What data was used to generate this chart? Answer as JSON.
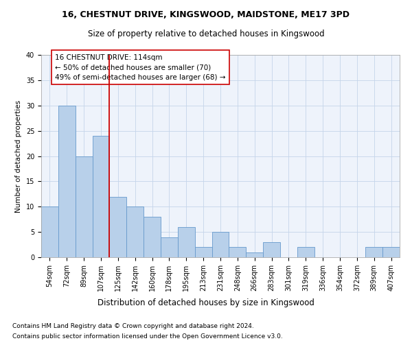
{
  "title1": "16, CHESTNUT DRIVE, KINGSWOOD, MAIDSTONE, ME17 3PD",
  "title2": "Size of property relative to detached houses in Kingswood",
  "xlabel": "Distribution of detached houses by size in Kingswood",
  "ylabel": "Number of detached properties",
  "categories": [
    "54sqm",
    "72sqm",
    "89sqm",
    "107sqm",
    "125sqm",
    "142sqm",
    "160sqm",
    "178sqm",
    "195sqm",
    "213sqm",
    "231sqm",
    "248sqm",
    "266sqm",
    "283sqm",
    "301sqm",
    "319sqm",
    "336sqm",
    "354sqm",
    "372sqm",
    "389sqm",
    "407sqm"
  ],
  "values": [
    10,
    30,
    20,
    24,
    12,
    10,
    8,
    4,
    6,
    2,
    5,
    2,
    1,
    3,
    0,
    2,
    0,
    0,
    0,
    2,
    2
  ],
  "bar_color": "#b8d0ea",
  "bar_edge_color": "#6699cc",
  "vline_x": 3.5,
  "vline_color": "#cc0000",
  "annotation_text": "16 CHESTNUT DRIVE: 114sqm\n← 50% of detached houses are smaller (70)\n49% of semi-detached houses are larger (68) →",
  "annotation_box_color": "white",
  "annotation_box_edge": "#cc0000",
  "ylim": [
    0,
    40
  ],
  "yticks": [
    0,
    5,
    10,
    15,
    20,
    25,
    30,
    35,
    40
  ],
  "footer1": "Contains HM Land Registry data © Crown copyright and database right 2024.",
  "footer2": "Contains public sector information licensed under the Open Government Licence v3.0.",
  "background_color": "#eef3fb",
  "grid_color": "#c5d5ea",
  "title1_fontsize": 9,
  "title2_fontsize": 8.5,
  "xlabel_fontsize": 8.5,
  "ylabel_fontsize": 7.5,
  "tick_fontsize": 7,
  "annotation_fontsize": 7.5,
  "footer_fontsize": 6.5
}
